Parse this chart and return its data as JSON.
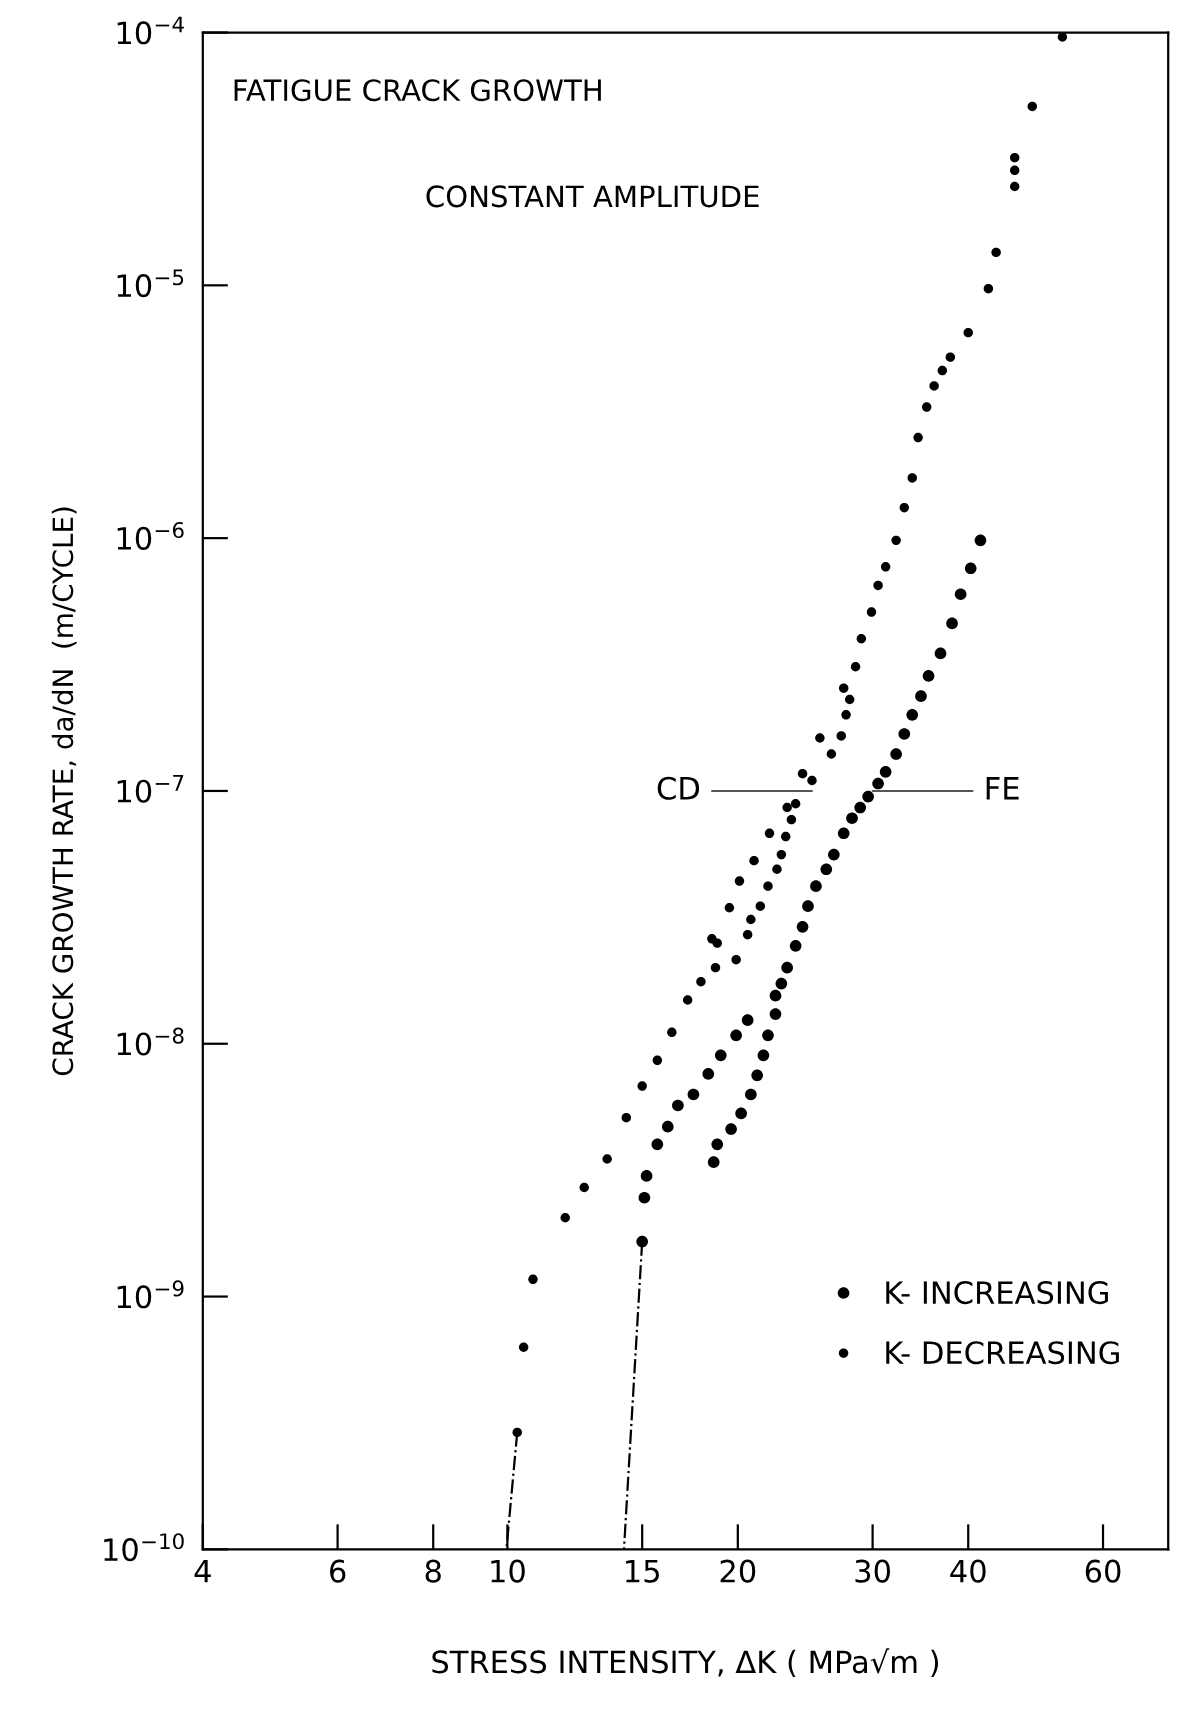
{
  "chart_data": {
    "type": "scatter",
    "log": "xy",
    "xlabel": "STRESS INTENSITY, ΔK ( MPa√m )",
    "ylabel": "CRACK GROWTH RATE, da/dN  (m/CYCLE)",
    "annotations": [
      "FATIGUE CRACK GROWTH",
      "CONSTANT AMPLITUDE",
      {
        "text": "CD",
        "x": 25,
        "y": 1e-07
      },
      {
        "text": "FE",
        "x": 30,
        "y": 1e-07
      }
    ],
    "xlim": [
      4,
      73
    ],
    "ylim": [
      1e-10,
      0.0001
    ],
    "xticks": [
      4,
      6,
      8,
      10,
      15,
      20,
      30,
      40,
      60
    ],
    "yticks": [
      {
        "value": 1e-10,
        "label": "10$^{−10}$"
      },
      {
        "value": 1e-09,
        "label": "10$^{−9}$"
      },
      {
        "value": 1e-08,
        "label": "10$^{−8}$"
      },
      {
        "value": 1e-07,
        "label": "10$^{−7}$"
      },
      {
        "value": 1e-06,
        "label": "10$^{−6}$"
      },
      {
        "value": 1e-05,
        "label": "10$^{−5}$"
      },
      {
        "value": 0.0001,
        "label": "10$^{−4}$"
      }
    ],
    "grid": false,
    "legend": "bottom right",
    "marker": "circle",
    "series": [
      {
        "name": "K- INCREASING",
        "color": "#000000",
        "x": [
          41.5,
          40.3,
          39.1,
          38.1,
          36.8,
          35.5,
          34.7,
          33.8,
          33.0,
          32.2,
          31.2,
          30.5,
          29.6,
          28.9,
          28.2,
          27.5,
          26.7,
          26.1,
          25.3,
          24.7,
          24.3,
          23.8,
          23.2,
          22.8,
          22.4,
          22.4,
          21.9,
          21.6,
          21.2,
          20.8,
          20.2,
          19.6,
          18.8,
          18.6,
          20.6,
          19.9,
          19.0,
          18.3,
          17.5,
          16.7,
          16.2,
          15.7,
          15.2,
          15.1,
          15.0
        ],
        "values": [
          9.8e-07,
          7.6e-07,
          6e-07,
          4.6e-07,
          3.5e-07,
          2.85e-07,
          2.37e-07,
          2e-07,
          1.68e-07,
          1.4e-07,
          1.19e-07,
          1.07e-07,
          9.5e-08,
          8.6e-08,
          7.8e-08,
          6.8e-08,
          5.6e-08,
          4.9e-08,
          4.2e-08,
          3.5e-08,
          2.9e-08,
          2.44e-08,
          2e-08,
          1.73e-08,
          1.55e-08,
          1.31e-08,
          1.08e-08,
          9e-09,
          7.5e-09,
          6.3e-09,
          5.3e-09,
          4.6e-09,
          4e-09,
          3.4e-09,
          1.24e-08,
          1.08e-08,
          9e-09,
          7.6e-09,
          6.3e-09,
          5.7e-09,
          4.7e-09,
          4e-09,
          3e-09,
          2.46e-09,
          1.65e-09
        ]
      },
      {
        "name": "K- DECREASING",
        "color": "#000000",
        "x": [
          53.1,
          48.5,
          46.0,
          46.0,
          46.0,
          43.5,
          42.5,
          40.0,
          37.9,
          37.0,
          36.1,
          35.3,
          34.4,
          33.8,
          33.0,
          32.2,
          31.2,
          30.5,
          29.9,
          29.0,
          28.5,
          27.5,
          28.0,
          27.7,
          27.3,
          26.5,
          25.6,
          25.0,
          24.3,
          23.2,
          22.0,
          21.0,
          20.1,
          19.5,
          18.5,
          18.8,
          18.7,
          17.9,
          17.2,
          16.4,
          15.7,
          15.0,
          14.3,
          13.5,
          12.6,
          11.9,
          10.8,
          10.5,
          10.3,
          23.8,
          23.5,
          23.1,
          22.8,
          22.5,
          21.9,
          21.4,
          20.8,
          20.6,
          19.9
        ],
        "values": [
          9.6e-05,
          5.1e-05,
          3.2e-05,
          2.85e-05,
          2.46e-05,
          1.35e-05,
          9.7e-06,
          6.5e-06,
          5.2e-06,
          4.6e-06,
          4e-06,
          3.3e-06,
          2.5e-06,
          1.73e-06,
          1.32e-06,
          9.8e-07,
          7.7e-07,
          6.5e-07,
          5.1e-07,
          4e-07,
          3.1e-07,
          2.55e-07,
          2.3e-07,
          2e-07,
          1.65e-07,
          1.4e-07,
          1.62e-07,
          1.1e-07,
          1.17e-07,
          8.6e-08,
          6.8e-08,
          5.3e-08,
          4.4e-08,
          3.45e-08,
          2.6e-08,
          2.5e-08,
          2e-08,
          1.76e-08,
          1.49e-08,
          1.11e-08,
          8.6e-09,
          6.8e-09,
          5.1e-09,
          3.5e-09,
          2.7e-09,
          2.05e-09,
          1.17e-09,
          6.3e-10,
          2.9e-10,
          8.9e-08,
          7.7e-08,
          6.6e-08,
          5.6e-08,
          4.9e-08,
          4.2e-08,
          3.5e-08,
          3.1e-08,
          2.7e-08,
          2.15e-08
        ]
      },
      {
        "type": "line",
        "color": "#000000",
        "line_style": "dashed",
        "marker": "none",
        "x": [
          10.3,
          9.97
        ],
        "values": [
          2.9e-10,
          1e-10
        ]
      },
      {
        "type": "line",
        "color": "#000000",
        "line_style": "dashed",
        "marker": "none",
        "x": [
          15.0,
          14.2
        ],
        "values": [
          1.65e-09,
          1e-10
        ]
      }
    ]
  }
}
